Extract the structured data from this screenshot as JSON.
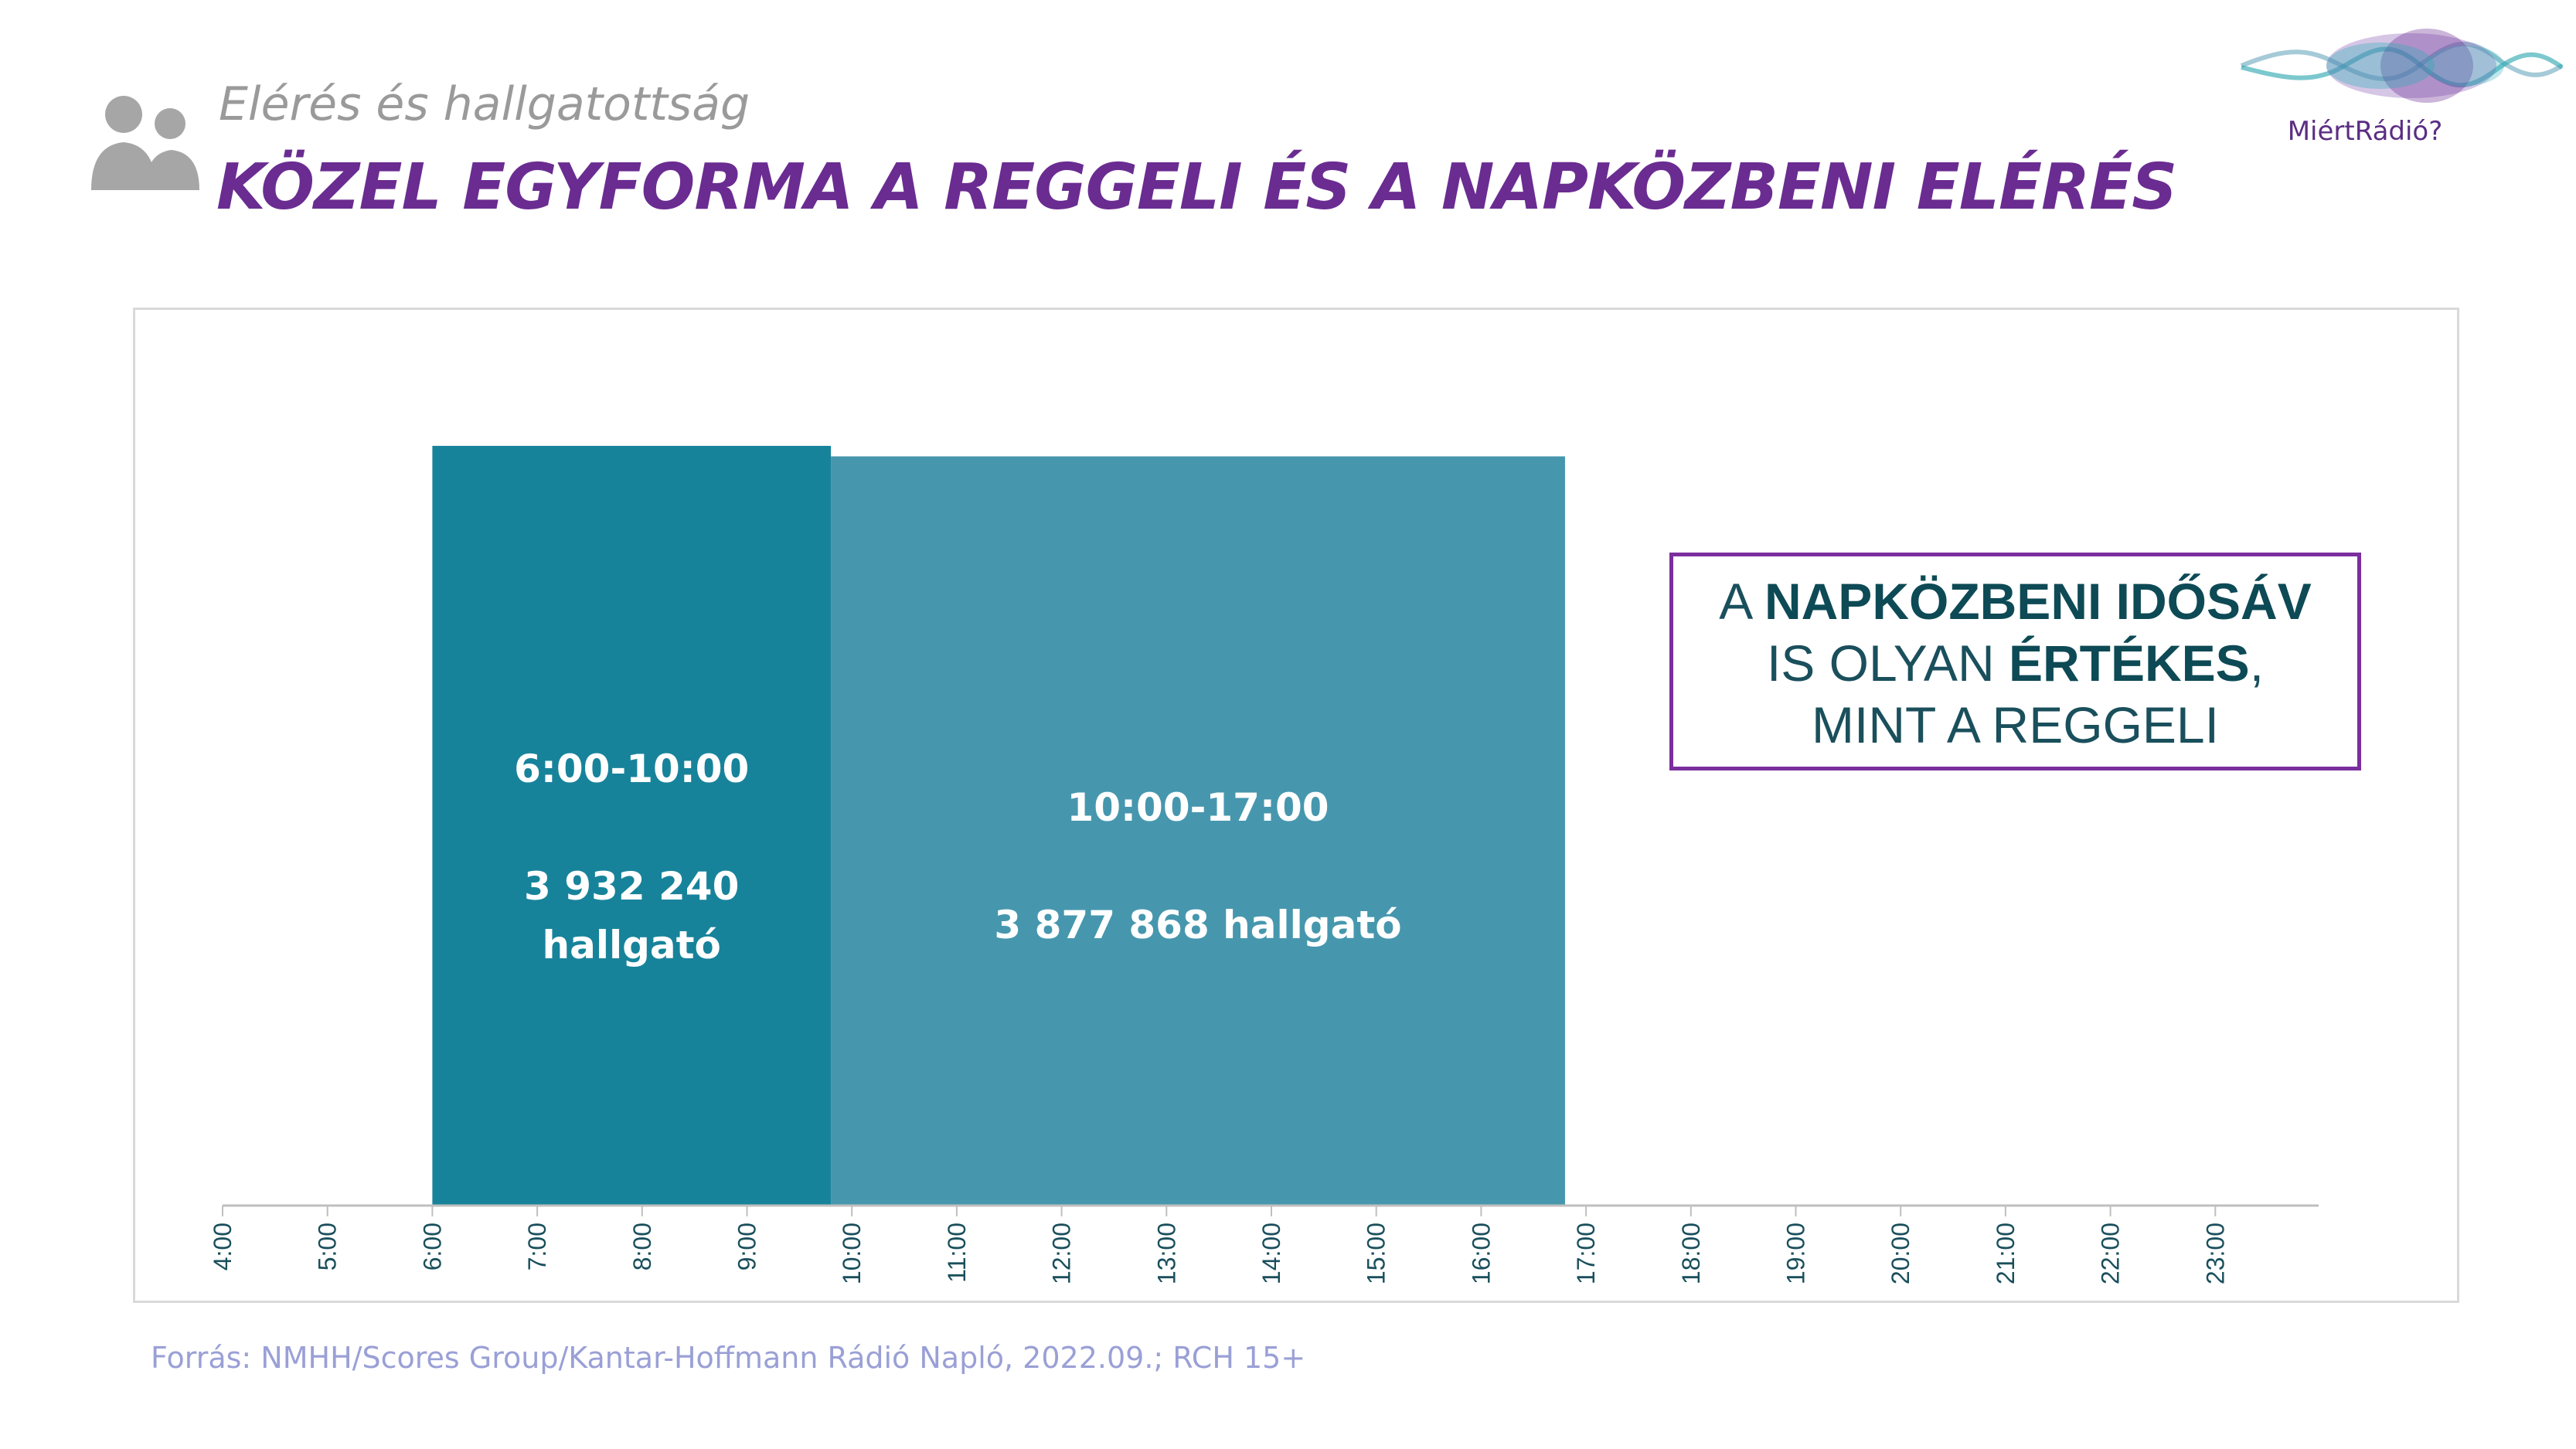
{
  "header": {
    "subtitle": "Elérés és hallgatottság",
    "title": "KÖZEL EGYFORMA A REGGELI ÉS A NAPKÖZBENI ELÉRÉS",
    "icon": "people-icon",
    "logo_text": "MiértRádió?"
  },
  "callout": {
    "line1_a": "A ",
    "line1_b": "NAPKÖZBENI IDŐSÁV",
    "line2_a": "IS OLYAN ",
    "line2_b": "ÉRTÉKES",
    "line2_c": ",",
    "line3": "MINT A REGGELI"
  },
  "source": "Forrás: NMHH/Scores Group/Kantar-Hoffmann Rádió Napló, 2022.09.; RCH 15+",
  "colors": {
    "morning_bar": "#17839b",
    "daytime_bar": "#4697ae",
    "title": "#6a2c91",
    "axis_text": "#1a4f5c"
  },
  "chart_data": {
    "type": "bar",
    "x_ticks": [
      "4:00",
      "5:00",
      "6:00",
      "7:00",
      "8:00",
      "9:00",
      "10:00",
      "11:00",
      "12:00",
      "13:00",
      "14:00",
      "15:00",
      "16:00",
      "17:00",
      "18:00",
      "19:00",
      "20:00",
      "21:00",
      "22:00",
      "23:00"
    ],
    "x_range": [
      4,
      24
    ],
    "ylim": [
      0,
      4000000
    ],
    "bars": [
      {
        "start": 6,
        "end": 9.8,
        "value": 3932240,
        "label_line1": "6:00-10:00",
        "label_line2": "3 932 240",
        "label_line3": "hallgató",
        "color": "#17839b"
      },
      {
        "start": 9.8,
        "end": 16.8,
        "value": 3877868,
        "label_line1": "10:00-17:00",
        "label_line2": "3 877 868 hallgató",
        "label_line3": "",
        "color": "#4697ae"
      }
    ]
  }
}
